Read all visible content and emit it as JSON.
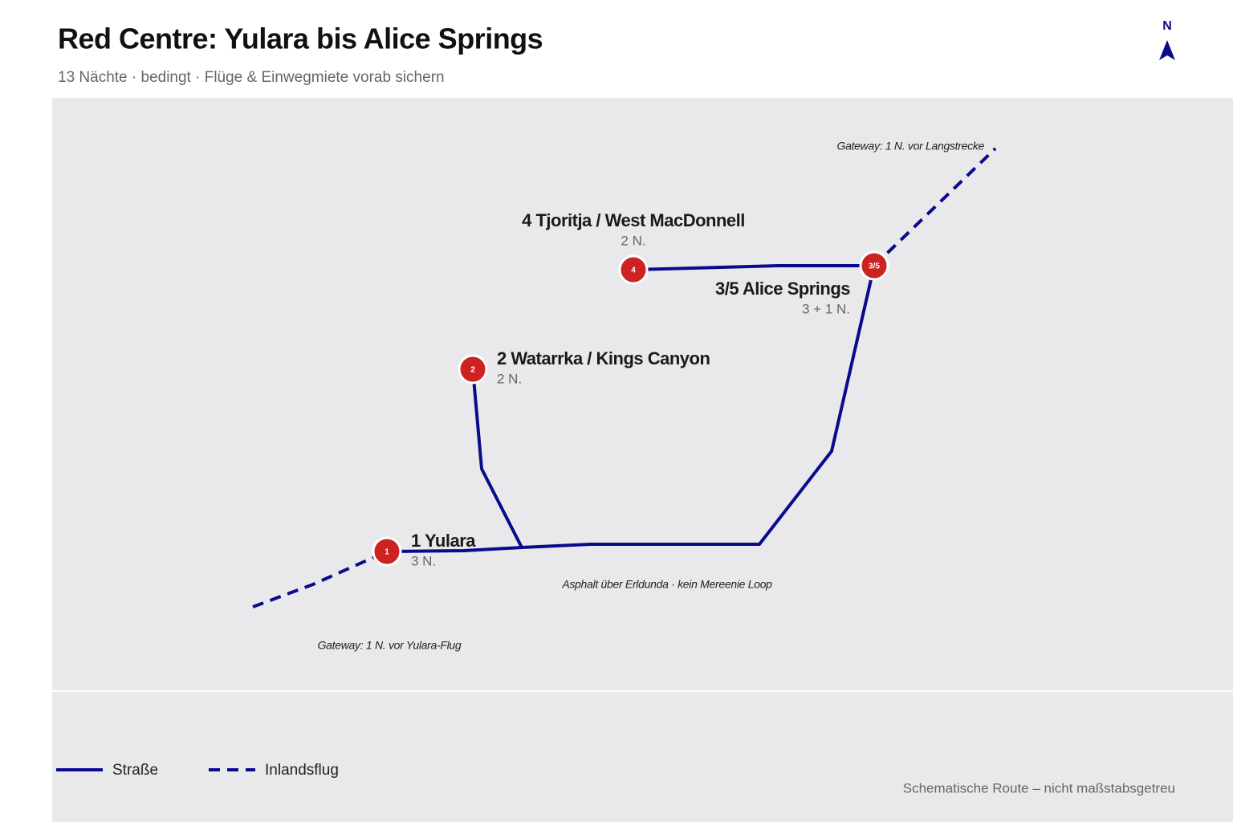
{
  "header": {
    "title": "Red Centre: Yulara bis Alice Springs",
    "subtitle": "13 Nächte · bedingt · Flüge & Einwegmiete vorab sichern",
    "north": "N"
  },
  "stops": [
    {
      "badge": "1",
      "name": "1 Yulara",
      "nights": "3 N."
    },
    {
      "badge": "2",
      "name": "2 Watarrka / Kings Canyon",
      "nights": "2 N."
    },
    {
      "badge": "4",
      "name": "4 Tjoritja / West MacDonnell",
      "nights": "2 N."
    },
    {
      "badge": "3/5",
      "name": "3/5 Alice Springs",
      "nights": "3 + 1 N."
    }
  ],
  "notes": {
    "gateway_north": "Gateway: 1 N. vor Langstrecke",
    "road": "Asphalt über Erldunda · kein Mereenie Loop",
    "gateway_south": "Gateway: 1 N. vor Yulara-Flug"
  },
  "legend": {
    "road": "Straße",
    "flight": "Inlandsflug"
  },
  "footer": "Schematische Route – nicht maßstabsgetreu"
}
